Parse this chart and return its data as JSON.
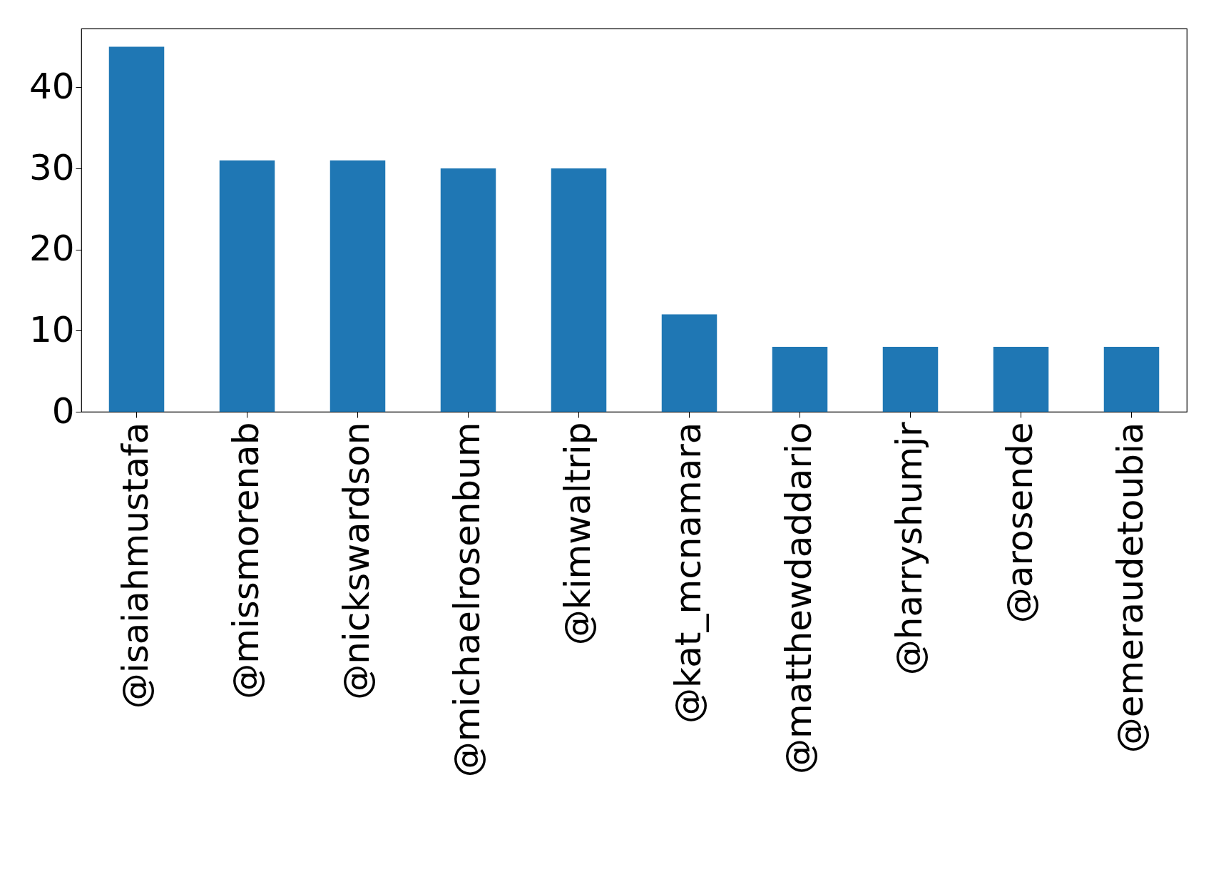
{
  "chart_data": {
    "type": "bar",
    "categories": [
      "@isaiahmustafa",
      "@missmorenab",
      "@nickswardson",
      "@michaelrosenbum",
      "@kimwaltrip",
      "@kat_mcnamara",
      "@matthewdaddario",
      "@harryshumjr",
      "@arosende",
      "@emeraudetoubia"
    ],
    "values": [
      45,
      31,
      31,
      30,
      30,
      12,
      8,
      8,
      8,
      8
    ],
    "color": "#1f77b4",
    "ylim": [
      0,
      47.25
    ],
    "yticks": [
      0,
      10,
      20,
      30,
      40
    ],
    "grid": false
  }
}
